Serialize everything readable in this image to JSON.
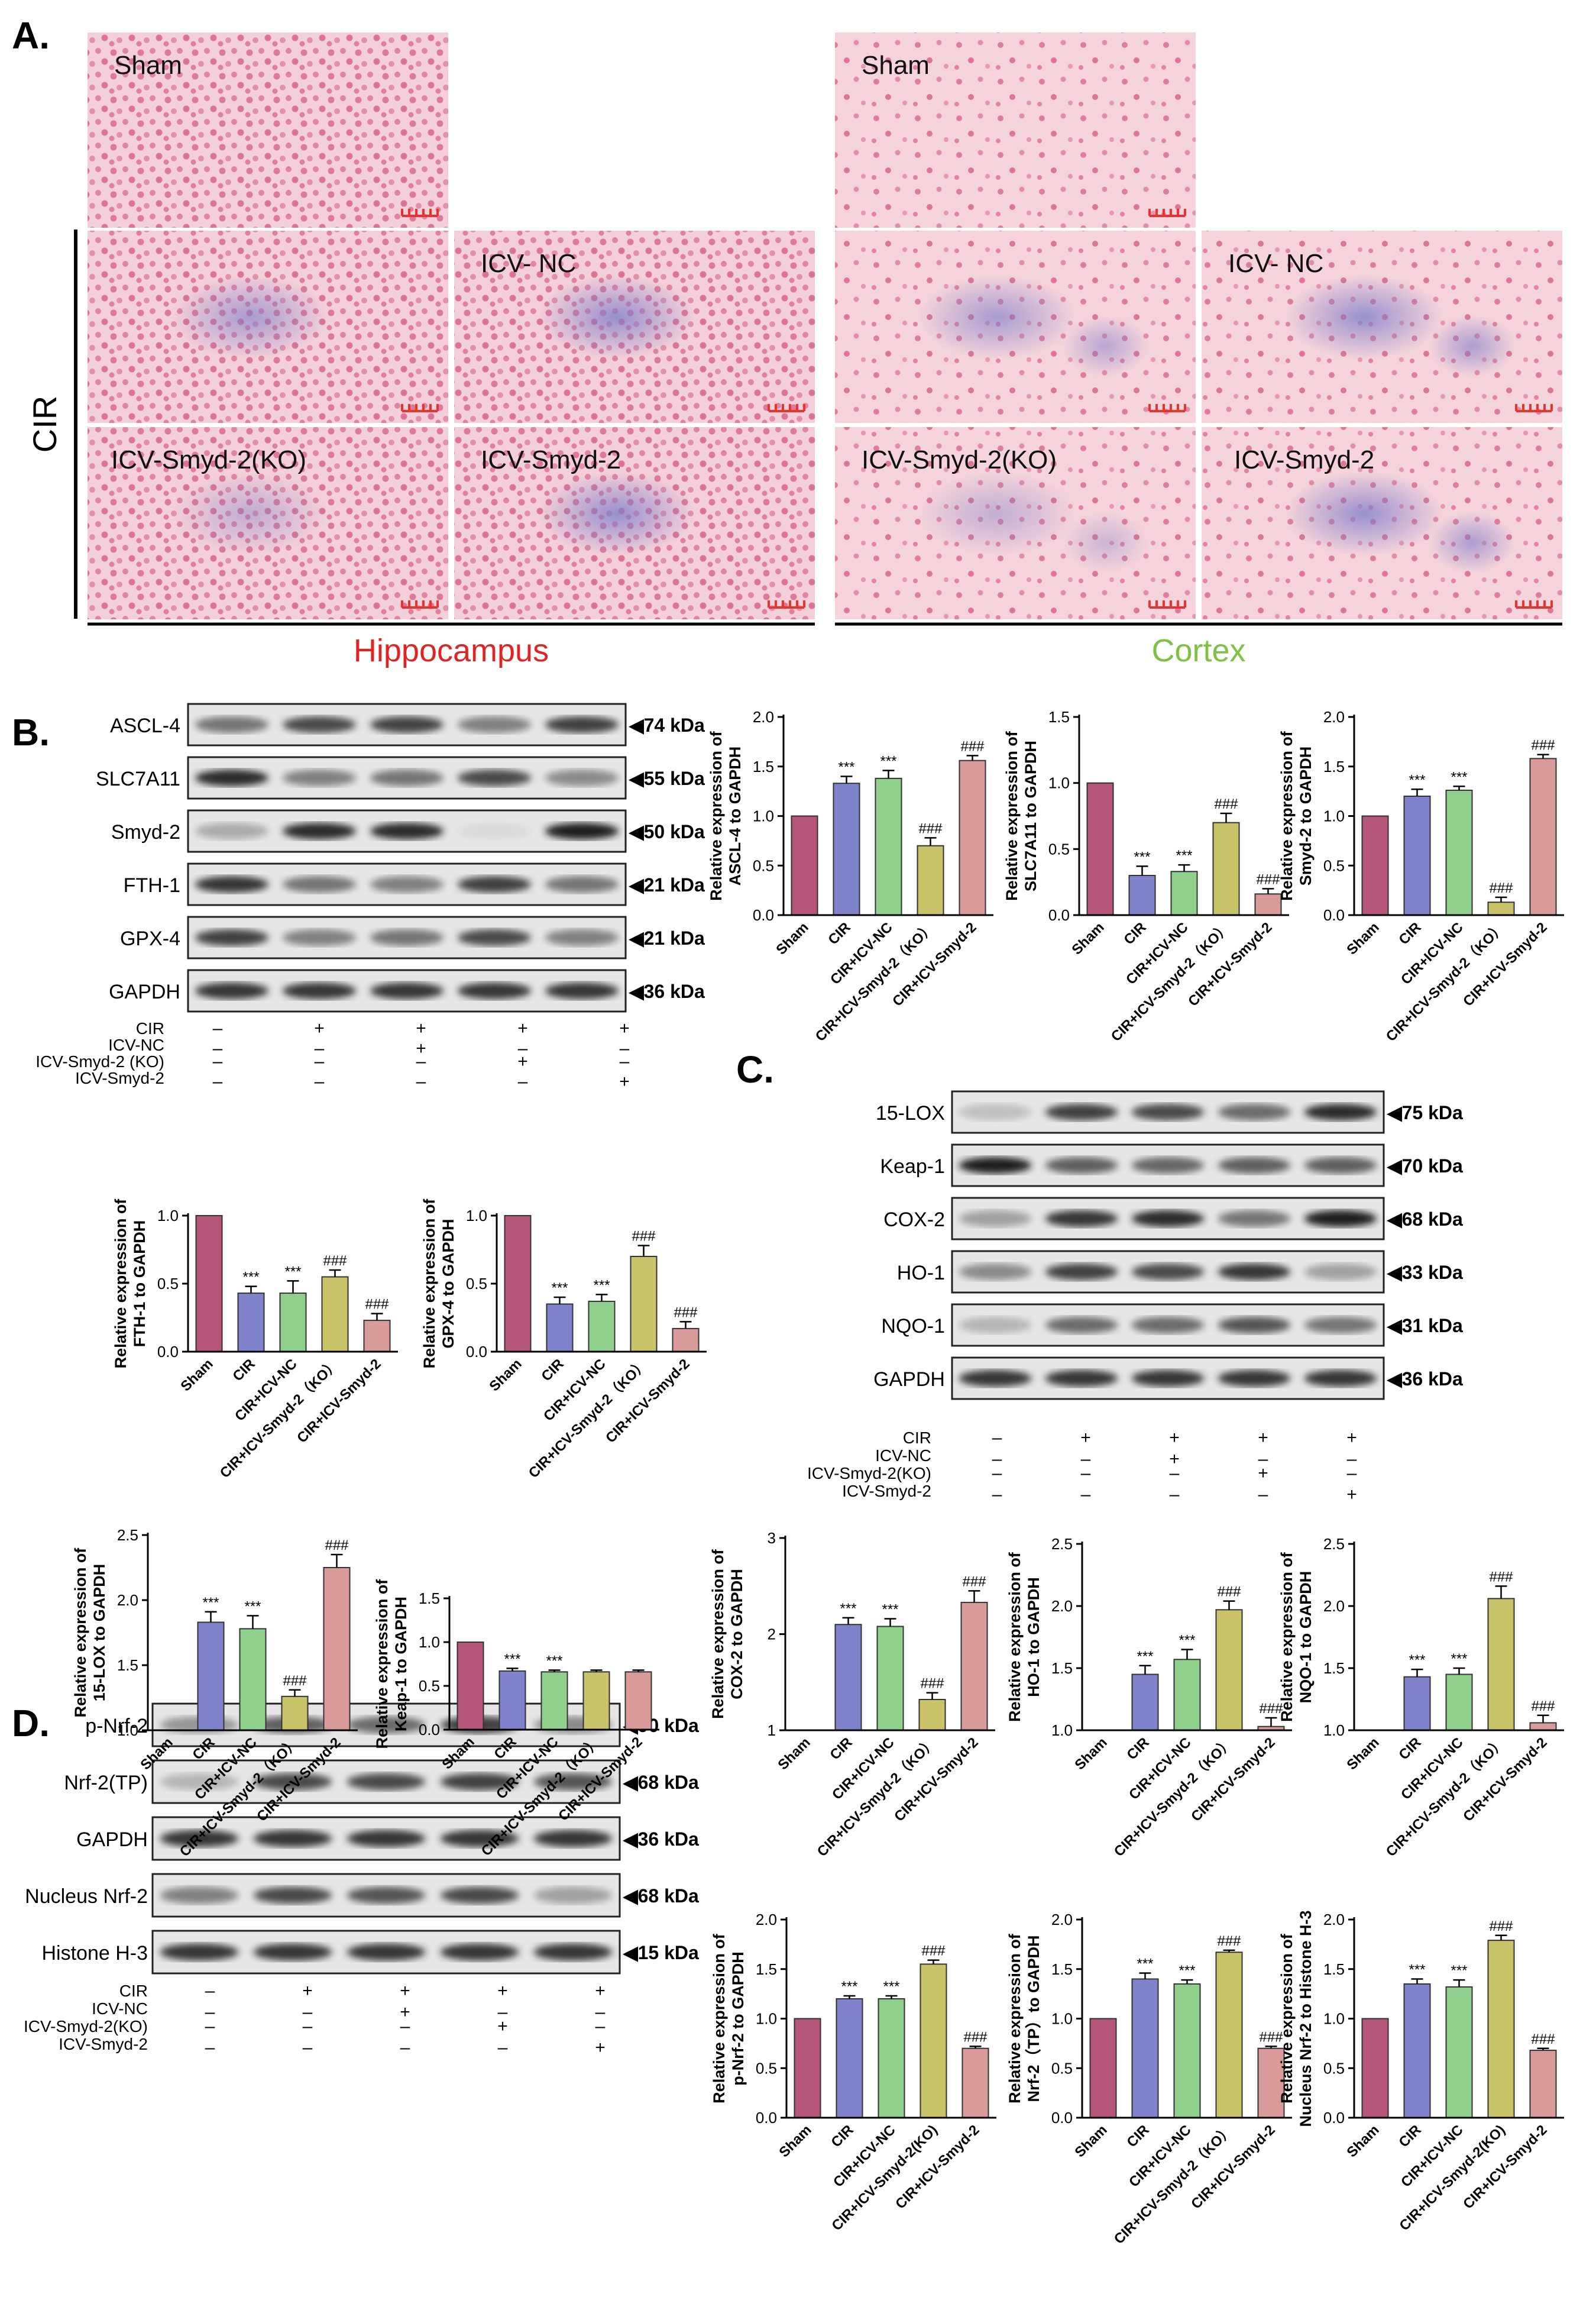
{
  "panels": {
    "A": {
      "label": "A.",
      "cir_label": "CIR",
      "tiles": [
        "Sham",
        "Sham",
        "",
        "ICV- NC",
        "",
        "ICV- NC",
        "ICV-Smyd-2(KO)",
        "ICV-Smyd-2",
        "ICV-Smyd-2(KO)",
        "ICV-Smyd-2"
      ],
      "region_labels": [
        "Hippocampus",
        "Cortex"
      ],
      "colors": {
        "hippocampus": "#e02424",
        "cortex": "#7dc242",
        "tissue": "#f2c4cf",
        "nuclei": "#d94f7a",
        "stain": "#6e6fc0"
      }
    },
    "B": {
      "label": "B.",
      "blot_rows": [
        "ASCL-4",
        "SLC7A11",
        "Smyd-2",
        "FTH-1",
        "GPX-4",
        "GAPDH"
      ],
      "kda": [
        "◀74 kDa",
        "◀55 kDa",
        "◀50 kDa",
        "◀21 kDa",
        "◀21 kDa",
        "◀36 kDa"
      ],
      "conditions": [
        {
          "name": "CIR",
          "signs": [
            "–",
            "+",
            "+",
            "+",
            "+"
          ]
        },
        {
          "name": "ICV-NC",
          "signs": [
            "–",
            "–",
            "+",
            "–",
            "–"
          ]
        },
        {
          "name": "ICV-Smyd-2 (KO)",
          "signs": [
            "–",
            "–",
            "–",
            "+",
            "–"
          ]
        },
        {
          "name": "ICV-Smyd-2",
          "signs": [
            "–",
            "–",
            "–",
            "–",
            "+"
          ]
        }
      ]
    },
    "C": {
      "label": "C.",
      "blot_rows": [
        "15-LOX",
        "Keap-1",
        "COX-2",
        "HO-1",
        "NQO-1",
        "GAPDH"
      ],
      "kda": [
        "◀75 kDa",
        "◀70 kDa",
        "◀68 kDa",
        "◀33 kDa",
        "◀31 kDa",
        "◀36 kDa"
      ],
      "conditions": [
        {
          "name": "CIR",
          "signs": [
            "–",
            "+",
            "+",
            "+",
            "+"
          ]
        },
        {
          "name": "ICV-NC",
          "signs": [
            "–",
            "–",
            "+",
            "–",
            "–"
          ]
        },
        {
          "name": "ICV-Smyd-2(KO)",
          "signs": [
            "–",
            "–",
            "–",
            "+",
            "–"
          ]
        },
        {
          "name": "ICV-Smyd-2",
          "signs": [
            "–",
            "–",
            "–",
            "–",
            "+"
          ]
        }
      ]
    },
    "D": {
      "label": "D.",
      "blot_rows": [
        "p-Nrf-2",
        "Nrf-2(TP)",
        "GAPDH",
        "Nucleus Nrf-2",
        "Histone H-3"
      ],
      "kda": [
        "◀90 kDa",
        "◀68 kDa",
        "◀36 kDa",
        "◀68 kDa",
        "◀15 kDa"
      ],
      "conditions": [
        {
          "name": "CIR",
          "signs": [
            "–",
            "+",
            "+",
            "+",
            "+"
          ]
        },
        {
          "name": "ICV-NC",
          "signs": [
            "–",
            "–",
            "+",
            "–",
            "–"
          ]
        },
        {
          "name": "ICV-Smyd-2(KO)",
          "signs": [
            "–",
            "–",
            "–",
            "+",
            "–"
          ]
        },
        {
          "name": "ICV-Smyd-2",
          "signs": [
            "–",
            "–",
            "–",
            "–",
            "+"
          ]
        }
      ]
    }
  },
  "bar_colors": [
    "#b5557a",
    "#7f83cc",
    "#8fd08c",
    "#c9c46a",
    "#d99a9a"
  ],
  "chart_data": [
    {
      "type": "bar",
      "ylabel": [
        "Relative expression of",
        "ASCL-4 to GAPDH"
      ],
      "ylim": [
        0,
        2.0
      ],
      "yticks": [
        "0.0",
        "0.5",
        "1.0",
        "1.5",
        "2.0"
      ],
      "categories": [
        "Sham",
        "CIR",
        "CIR+ICV-NC",
        "CIR+ICV-Smyd-2（KO）",
        "CIR+ICV-Smyd-2"
      ],
      "values": [
        1.0,
        1.33,
        1.38,
        0.7,
        1.56
      ],
      "errors": [
        0,
        0.07,
        0.08,
        0.08,
        0.05
      ],
      "annotations": [
        "",
        "***",
        "***",
        "###",
        "###"
      ]
    },
    {
      "type": "bar",
      "ylabel": [
        "Relative expression of",
        "SLC7A11 to GAPDH"
      ],
      "ylim": [
        0,
        1.5
      ],
      "yticks": [
        "0.0",
        "0.5",
        "1.0",
        "1.5"
      ],
      "categories": [
        "Sham",
        "CIR",
        "CIR+ICV-NC",
        "CIR+ICV-Smyd-2（KO）",
        "CIR+ICV-Smyd-2"
      ],
      "values": [
        1.0,
        0.3,
        0.33,
        0.7,
        0.16
      ],
      "errors": [
        0,
        0.07,
        0.05,
        0.07,
        0.04
      ],
      "annotations": [
        "",
        "***",
        "***",
        "###",
        "###"
      ]
    },
    {
      "type": "bar",
      "ylabel": [
        "Relative expression of",
        "Smyd-2 to GAPDH"
      ],
      "ylim": [
        0,
        2.0
      ],
      "yticks": [
        "0.0",
        "0.5",
        "1.0",
        "1.5",
        "2.0"
      ],
      "categories": [
        "Sham",
        "CIR",
        "CIR+ICV-NC",
        "CIR+ICV-Smyd-2（KO）",
        "CIR+ICV-Smyd-2"
      ],
      "values": [
        1.0,
        1.2,
        1.26,
        0.13,
        1.58
      ],
      "errors": [
        0,
        0.07,
        0.04,
        0.05,
        0.04
      ],
      "annotations": [
        "",
        "***",
        "***",
        "###",
        "###"
      ]
    },
    {
      "type": "bar",
      "ylabel": [
        "Relative expression of",
        "FTH-1 to GAPDH"
      ],
      "ylim": [
        0,
        1.0
      ],
      "yticks": [
        "0.0",
        "0.5",
        "1.0"
      ],
      "categories": [
        "Sham",
        "CIR",
        "CIR+ICV-NC",
        "CIR+ICV-Smyd-2（KO）",
        "CIR+ICV-Smyd-2"
      ],
      "values": [
        1.0,
        0.43,
        0.43,
        0.55,
        0.23
      ],
      "errors": [
        0,
        0.05,
        0.09,
        0.05,
        0.05
      ],
      "annotations": [
        "",
        "***",
        "***",
        "###",
        "###"
      ]
    },
    {
      "type": "bar",
      "ylabel": [
        "Relative expression of",
        "GPX-4 to GAPDH"
      ],
      "ylim": [
        0,
        1.0
      ],
      "yticks": [
        "0.0",
        "0.5",
        "1.0"
      ],
      "categories": [
        "Sham",
        "CIR",
        "CIR+ICV-NC",
        "CIR+ICV-Smyd-2（KO）",
        "CIR+ICV-Smyd-2"
      ],
      "values": [
        1.0,
        0.35,
        0.37,
        0.7,
        0.17
      ],
      "errors": [
        0,
        0.05,
        0.05,
        0.08,
        0.05
      ],
      "annotations": [
        "",
        "***",
        "***",
        "###",
        "###"
      ]
    },
    {
      "type": "bar",
      "ylabel": [
        "Relative expression of",
        "15-LOX to GAPDH"
      ],
      "ylim": [
        0,
        2.5
      ],
      "yticks": [
        "1.0",
        "1.5",
        "2.0",
        "2.5"
      ],
      "categories": [
        "Sham",
        "CIR",
        "CIR+ICV-NC",
        "CIR+ICV-Smyd-2（KO）",
        "CIR+ICV-Smyd-2"
      ],
      "values": [
        1.0,
        1.83,
        1.78,
        1.26,
        2.25
      ],
      "errors": [
        0,
        0.08,
        0.1,
        0.05,
        0.1
      ],
      "annotations": [
        "",
        "***",
        "***",
        "###",
        "###"
      ]
    },
    {
      "type": "bar",
      "ylabel": [
        "Relative expression of",
        "Keap-1 to GAPDH"
      ],
      "ylim": [
        0,
        1.5
      ],
      "yticks": [
        "0.0",
        "0.5",
        "1.0",
        "1.5"
      ],
      "categories": [
        "Sham",
        "CIR",
        "CIR+ICV-NC",
        "CIR+ICV-Smyd-2（KO）",
        "CIR+ICV-Smyd-2"
      ],
      "values": [
        1.0,
        0.67,
        0.66,
        0.66,
        0.66
      ],
      "errors": [
        0,
        0.03,
        0.02,
        0.02,
        0.02
      ],
      "annotations": [
        "",
        "***",
        "***",
        "",
        ""
      ]
    },
    {
      "type": "bar",
      "ylabel": [
        "Relative expression of",
        "COX-2 to GAPDH"
      ],
      "ylim": [
        0,
        3
      ],
      "yticks": [
        "1",
        "2",
        "3"
      ],
      "categories": [
        "Sham",
        "CIR",
        "CIR+ICV-NC",
        "CIR+ICV-Smyd-2（KO）",
        "CIR+ICV-Smyd-2"
      ],
      "values": [
        1.0,
        2.1,
        2.08,
        1.32,
        2.33
      ],
      "errors": [
        0,
        0.07,
        0.08,
        0.07,
        0.12
      ],
      "annotations": [
        "",
        "***",
        "***",
        "###",
        "###"
      ]
    },
    {
      "type": "bar",
      "ylabel": [
        "Relative expression of",
        "HO-1 to GAPDH"
      ],
      "ylim": [
        0,
        2.5
      ],
      "yticks": [
        "1.0",
        "1.5",
        "2.0",
        "2.5"
      ],
      "categories": [
        "Sham",
        "CIR",
        "CIR+ICV-NC",
        "CIR+ICV-Smyd-2（KO）",
        "CIR+ICV-Smyd-2"
      ],
      "values": [
        1.0,
        1.45,
        1.57,
        1.97,
        1.03
      ],
      "errors": [
        0,
        0.07,
        0.08,
        0.07,
        0.07
      ],
      "annotations": [
        "",
        "***",
        "***",
        "###",
        "###"
      ]
    },
    {
      "type": "bar",
      "ylabel": [
        "Relative expression of",
        "NQO-1 to GAPDH"
      ],
      "ylim": [
        0,
        2.5
      ],
      "yticks": [
        "1.0",
        "1.5",
        "2.0",
        "2.5"
      ],
      "categories": [
        "Sham",
        "CIR",
        "CIR+ICV-NC",
        "CIR+ICV-Smyd-2（KO）",
        "CIR+ICV-Smyd-2"
      ],
      "values": [
        1.0,
        1.43,
        1.45,
        2.06,
        1.06
      ],
      "errors": [
        0,
        0.06,
        0.05,
        0.1,
        0.06
      ],
      "annotations": [
        "",
        "***",
        "***",
        "###",
        "###"
      ]
    },
    {
      "type": "bar",
      "ylabel": [
        "Relative expression of",
        "p-Nrf-2 to GAPDH"
      ],
      "ylim": [
        0,
        2.0
      ],
      "yticks": [
        "0.0",
        "0.5",
        "1.0",
        "1.5",
        "2.0"
      ],
      "categories": [
        "Sham",
        "CIR",
        "CIR+ICV-NC",
        "CIR+ICV-Smyd-2(KO)",
        "CIR+ICV-Smyd-2"
      ],
      "values": [
        1.0,
        1.2,
        1.2,
        1.55,
        0.7
      ],
      "errors": [
        0,
        0.03,
        0.03,
        0.04,
        0.02
      ],
      "annotations": [
        "",
        "***",
        "***",
        "###",
        "###"
      ]
    },
    {
      "type": "bar",
      "ylabel": [
        "Relative expression of",
        "Nrf-2（TP）to GAPDH"
      ],
      "ylim": [
        0,
        2.0
      ],
      "yticks": [
        "0.0",
        "0.5",
        "1.0",
        "1.5",
        "2.0"
      ],
      "categories": [
        "Sham",
        "CIR",
        "CIR+ICV-NC",
        "CIR+ICV-Smyd-2（KO）",
        "CIR+ICV-Smyd-2"
      ],
      "values": [
        1.0,
        1.4,
        1.35,
        1.67,
        0.7
      ],
      "errors": [
        0,
        0.06,
        0.04,
        0.02,
        0.02
      ],
      "annotations": [
        "",
        "***",
        "***",
        "###",
        "###"
      ]
    },
    {
      "type": "bar",
      "ylabel": [
        "Relative expression of",
        "Nucleus Nrf-2 to Histone H-3"
      ],
      "ylim": [
        0,
        2.0
      ],
      "yticks": [
        "0.0",
        "0.5",
        "1.0",
        "1.5",
        "2.0"
      ],
      "categories": [
        "Sham",
        "CIR",
        "CIR+ICV-NC",
        "CIR+ICV-Smyd-2(KO)",
        "CIR+ICV-Smyd-2"
      ],
      "values": [
        1.0,
        1.35,
        1.32,
        1.79,
        0.68
      ],
      "errors": [
        0,
        0.05,
        0.07,
        0.05,
        0.02
      ],
      "annotations": [
        "",
        "***",
        "***",
        "###",
        "###"
      ]
    }
  ]
}
